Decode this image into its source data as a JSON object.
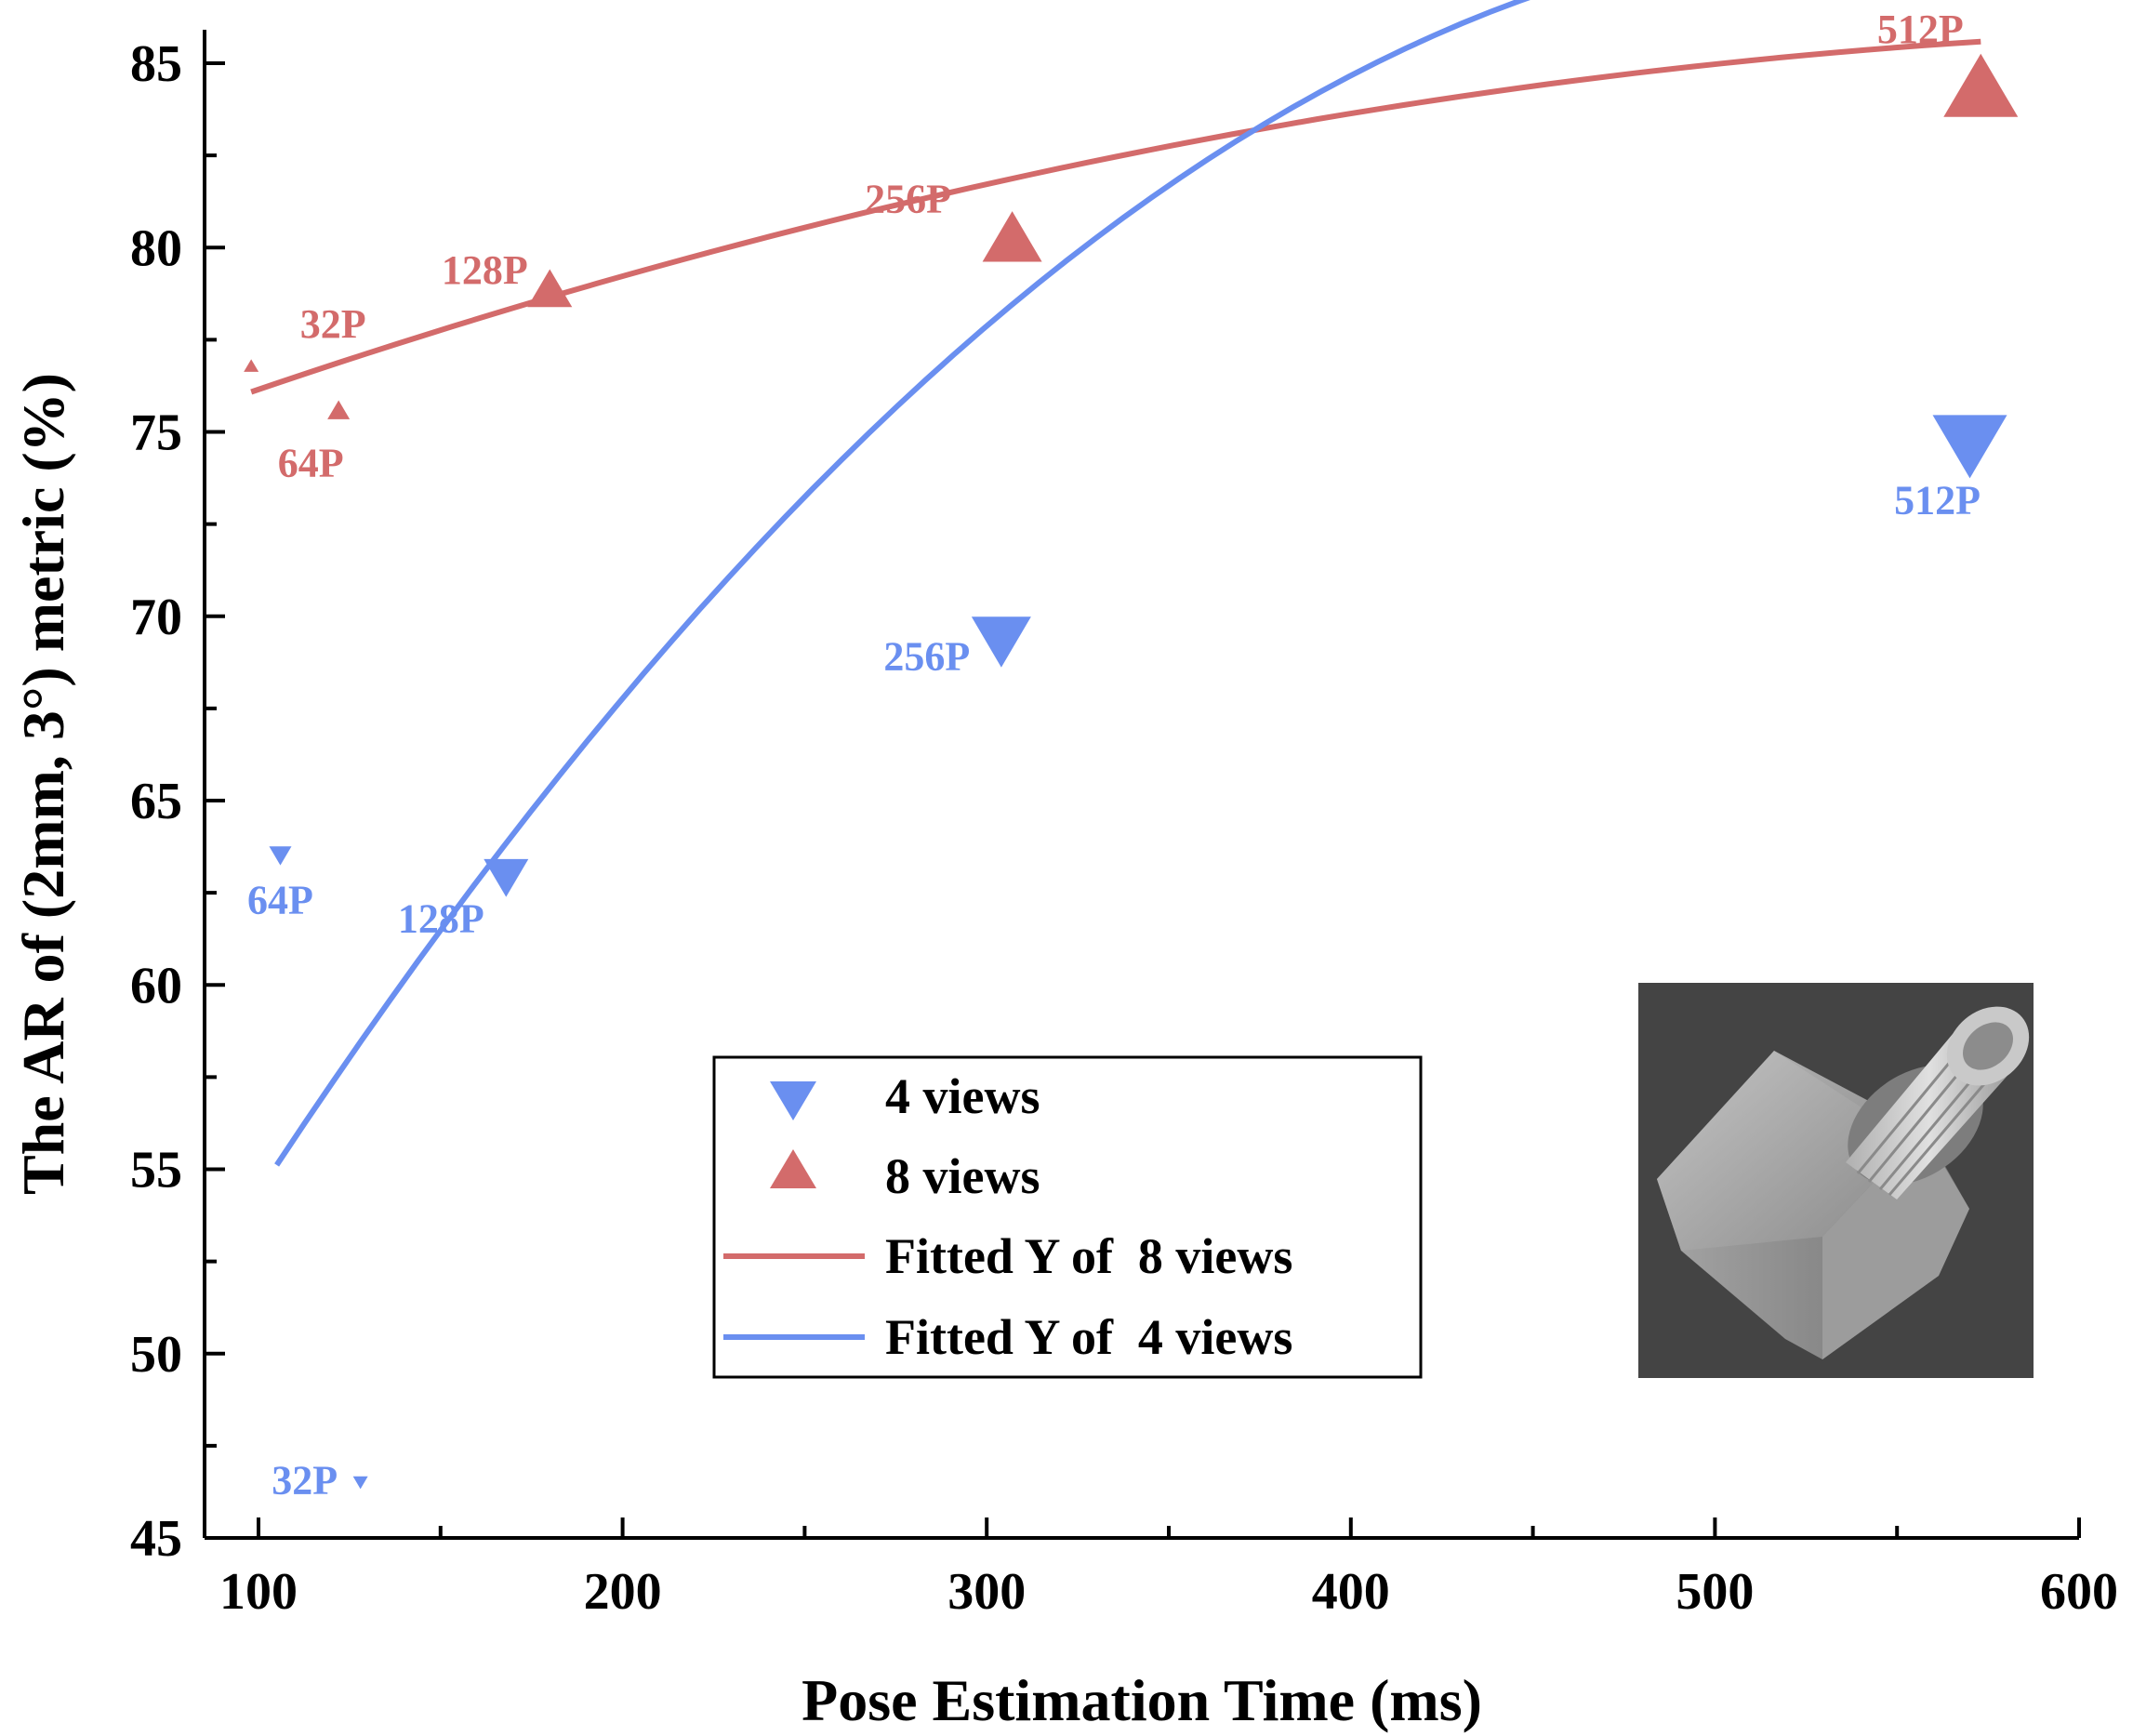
{
  "chart_data": {
    "type": "scatter",
    "xlabel": "Pose Estimation Time (ms)",
    "ylabel": "The AR of (2mm, 3°) metric (%)",
    "xlim": [
      90,
      600
    ],
    "ylim": [
      45,
      86
    ],
    "xticks": [
      "100",
      "200",
      "300",
      "400",
      "500",
      "600"
    ],
    "yticks": [
      "45",
      "50",
      "55",
      "60",
      "65",
      "70",
      "75",
      "80",
      "85"
    ],
    "colors": {
      "views8": "#d36b6b",
      "views4": "#6a8ff0"
    },
    "series": [
      {
        "name": "4 views",
        "marker": "triangle-down",
        "points": [
          {
            "x": 128,
            "y": 46.5,
            "label": "32P"
          },
          {
            "x": 106,
            "y": 63.5,
            "label": "64P"
          },
          {
            "x": 168,
            "y": 62.9,
            "label": "128P"
          },
          {
            "x": 304,
            "y": 69.3,
            "label": "256P"
          },
          {
            "x": 570,
            "y": 74.6,
            "label": "512P"
          }
        ]
      },
      {
        "name": "8 views",
        "marker": "triangle-up",
        "points": [
          {
            "x": 98,
            "y": 76.8,
            "label": "32P"
          },
          {
            "x": 122,
            "y": 75.6,
            "label": "64P"
          },
          {
            "x": 180,
            "y": 78.9,
            "label": "128P"
          },
          {
            "x": 307,
            "y": 80.3,
            "label": "256P"
          },
          {
            "x": 573,
            "y": 84.4,
            "label": "512P"
          }
        ]
      }
    ],
    "fits": [
      {
        "name": "Fitted Y of  8 views",
        "x": [
          98,
          573
        ],
        "coef": [
          72.5,
          0.0394,
          -2.89e-05
        ]
      },
      {
        "name": "Fitted Y of  4 views",
        "x": [
          105,
          570
        ],
        "coef": [
          37.65,
          0.1837,
          -0.0001654
        ]
      }
    ],
    "legend": {
      "position": "center-bottom",
      "items": [
        "4 views",
        "8 views",
        "Fitted Y of  8 views",
        "Fitted Y of  4 views"
      ]
    },
    "inset": "rendered image of a threaded pipe fitting"
  }
}
